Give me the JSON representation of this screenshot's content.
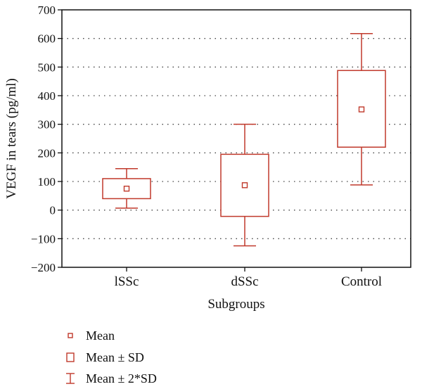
{
  "chart_data": {
    "type": "box",
    "xlabel": "Subgroups",
    "ylabel": "VEGF in tears (pg/ml)",
    "ylim": [
      -200,
      700
    ],
    "yticks": [
      -200,
      -100,
      0,
      100,
      200,
      300,
      400,
      500,
      600,
      700
    ],
    "grid": "horizontal dotted",
    "color": "#c0392b",
    "categories": [
      "lSSc",
      "dSSc",
      "Control"
    ],
    "series": [
      {
        "category": "lSSc",
        "mean": 75,
        "mean_minus_sd": 40,
        "mean_plus_sd": 110,
        "mean_minus_2sd": 7,
        "mean_plus_2sd": 145
      },
      {
        "category": "dSSc",
        "mean": 87,
        "mean_minus_sd": -22,
        "mean_plus_sd": 195,
        "mean_minus_2sd": -125,
        "mean_plus_2sd": 300
      },
      {
        "category": "Control",
        "mean": 352,
        "mean_minus_sd": 220,
        "mean_plus_sd": 488,
        "mean_minus_2sd": 88,
        "mean_plus_2sd": 617
      }
    ],
    "legend": {
      "placement": "bottom-left",
      "entries": [
        {
          "symbol": "small-square",
          "label": "Mean"
        },
        {
          "symbol": "box",
          "label": "Mean ± SD"
        },
        {
          "symbol": "whisker",
          "label": "Mean ± 2*SD"
        }
      ]
    }
  }
}
